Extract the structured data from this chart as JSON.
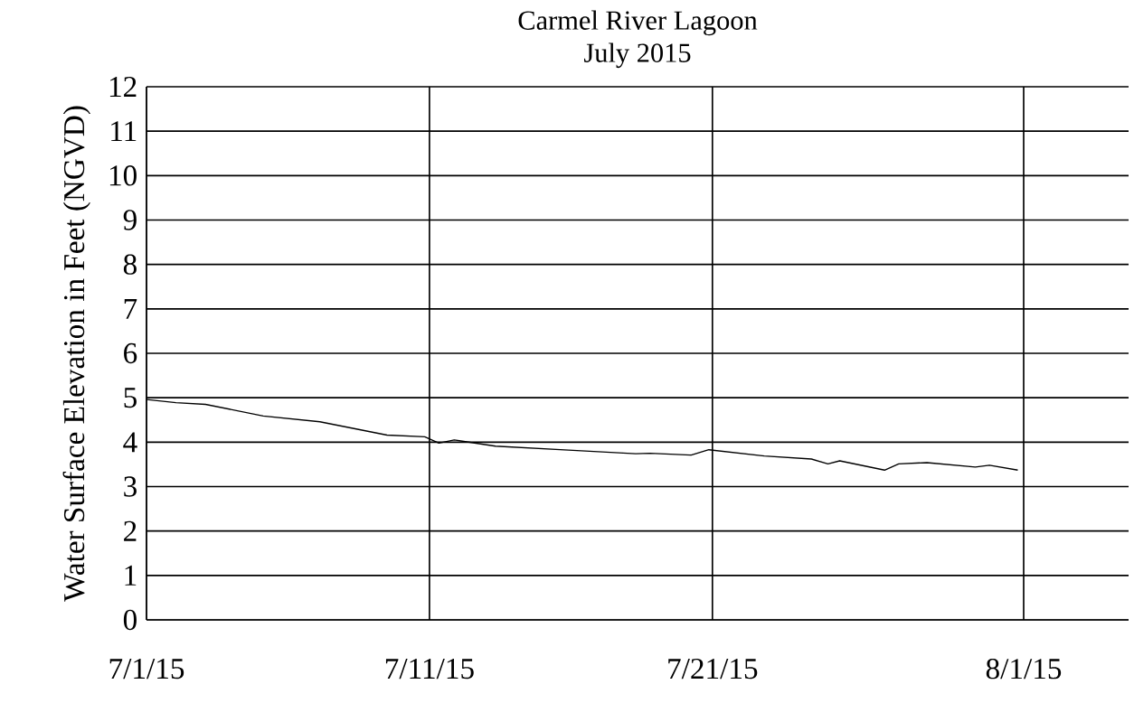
{
  "chart_data": {
    "type": "line",
    "title": "Carmel River Lagoon",
    "subtitle": "July 2015",
    "ylabel": "Water Surface Elevation in Feet (NGVD)",
    "x": [
      "2015-07-01T00:00",
      "2015-07-02T01:00",
      "2015-07-03T02:00",
      "2015-07-05T03:00",
      "2015-07-07T03:00",
      "2015-07-09T12:00",
      "2015-07-10T20:00",
      "2015-07-11T08:00",
      "2015-07-11T21:00",
      "2015-07-13T08:00",
      "2015-07-15T22:00",
      "2015-07-18T07:00",
      "2015-07-18T19:00",
      "2015-07-20T06:00",
      "2015-07-20T21:00",
      "2015-07-22T20:00",
      "2015-07-24T12:00",
      "2015-07-25T02:00",
      "2015-07-25T12:00",
      "2015-07-27T02:00",
      "2015-07-27T14:00",
      "2015-07-28T14:00",
      "2015-07-30T07:00",
      "2015-07-30T19:00",
      "2015-07-31T19:00"
    ],
    "values": [
      4.96,
      4.89,
      4.85,
      4.59,
      4.46,
      4.16,
      4.12,
      3.98,
      4.05,
      3.91,
      3.82,
      3.74,
      3.75,
      3.71,
      3.83,
      3.69,
      3.62,
      3.51,
      3.58,
      3.37,
      3.51,
      3.54,
      3.44,
      3.48,
      3.37
    ],
    "color": "#000000",
    "xlim": [
      "2015-07-01",
      "2015-08-04T17:00"
    ],
    "xticks": [
      {
        "value": "2015-07-01",
        "label": "7/1/15"
      },
      {
        "value": "2015-07-11",
        "label": "7/11/15"
      },
      {
        "value": "2015-07-21",
        "label": "7/21/15"
      },
      {
        "value": "2015-08-01",
        "label": "8/1/15"
      }
    ],
    "ylim": [
      0,
      12
    ],
    "yticks": [
      0,
      1,
      2,
      3,
      4,
      5,
      6,
      7,
      8,
      9,
      10,
      11,
      12
    ],
    "grid": true
  }
}
